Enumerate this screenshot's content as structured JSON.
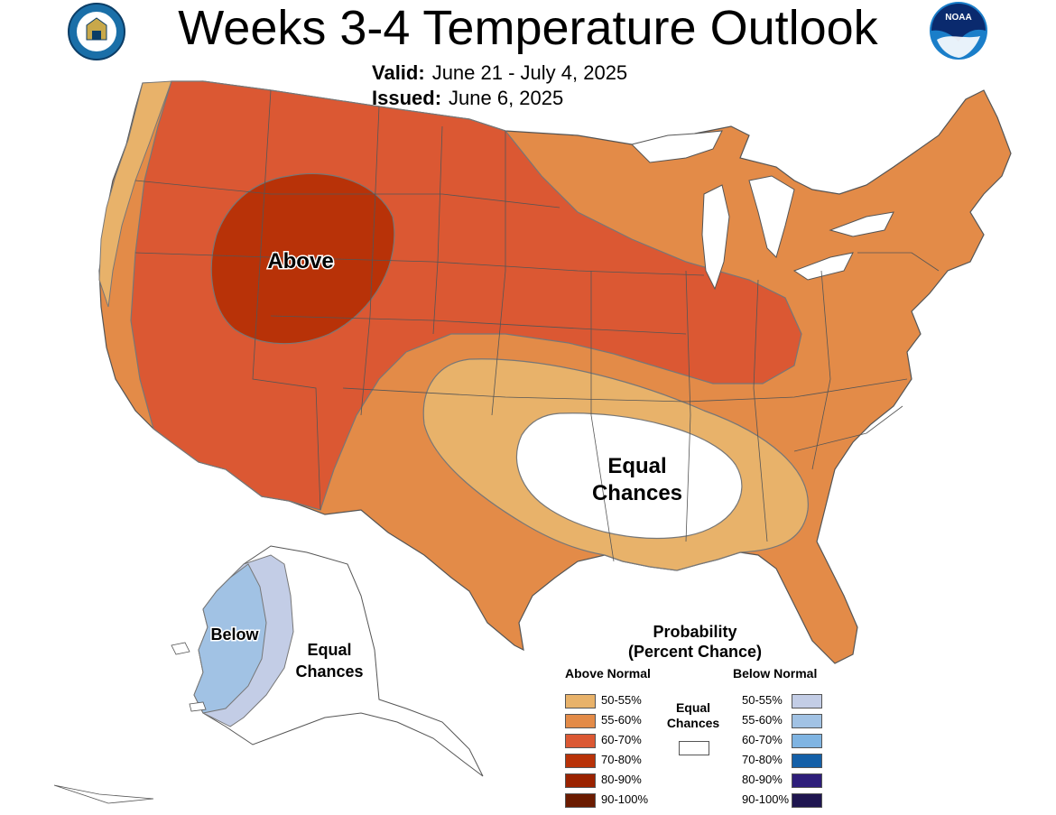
{
  "title": "Weeks 3-4 Temperature Outlook",
  "valid": {
    "label": "Valid:",
    "value": "June 21 - July 4, 2025"
  },
  "issued": {
    "label": "Issued:",
    "value": "June 6, 2025"
  },
  "logos": {
    "left": "department-of-commerce-seal",
    "right": "noaa-logo",
    "noaa_text": "NOAA"
  },
  "map_labels": {
    "above": "Above",
    "equal_chances_main": [
      "Equal",
      "Chances"
    ],
    "below": "Below",
    "equal_chances_alaska": [
      "Equal",
      "Chances"
    ]
  },
  "colors": {
    "above_50_55": "#E8B26A",
    "above_55_60": "#E38B48",
    "above_60_70": "#DB5833",
    "above_70_80": "#B83208",
    "above_80_90": "#9A2200",
    "above_90_100": "#6B1B00",
    "below_50_55": "#C3CDE6",
    "below_55_60": "#A1C2E4",
    "below_60_70": "#7FB4E2",
    "below_70_80": "#1460A8",
    "below_80_90": "#2E1E7A",
    "below_90_100": "#1F1650",
    "equal": "#FFFFFF",
    "border": "#555555"
  },
  "legend": {
    "title_line1": "Probability",
    "title_line2": "(Percent Chance)",
    "above_header": "Above Normal",
    "below_header": "Below Normal",
    "equal_label": [
      "Equal",
      "Chances"
    ],
    "above_rows": [
      {
        "label": "50-55%",
        "color_key": "above_50_55"
      },
      {
        "label": "55-60%",
        "color_key": "above_55_60"
      },
      {
        "label": "60-70%",
        "color_key": "above_60_70"
      },
      {
        "label": "70-80%",
        "color_key": "above_70_80"
      },
      {
        "label": "80-90%",
        "color_key": "above_80_90"
      },
      {
        "label": "90-100%",
        "color_key": "above_90_100"
      }
    ],
    "below_rows": [
      {
        "label": "50-55%",
        "color_key": "below_50_55"
      },
      {
        "label": "55-60%",
        "color_key": "below_55_60"
      },
      {
        "label": "60-70%",
        "color_key": "below_60_70"
      },
      {
        "label": "70-80%",
        "color_key": "below_70_80"
      },
      {
        "label": "80-90%",
        "color_key": "below_80_90"
      },
      {
        "label": "90-100%",
        "color_key": "below_90_100"
      }
    ]
  }
}
